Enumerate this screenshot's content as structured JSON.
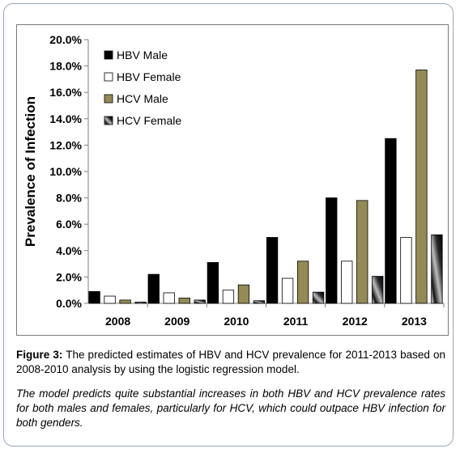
{
  "figure": {
    "caption_label": "Figure 3:",
    "caption_text": " The predicted estimates of HBV and HCV prevalence for 2011-2013 based on 2008-2010 analysis by using the logistic regression model.",
    "note": "The model predicts quite substantial increases in both HBV and HCV prevalence rates for both males and females, particularly for HCV, which could outpace HBV infection for both genders."
  },
  "chart_data": {
    "type": "bar",
    "categories": [
      "2008",
      "2009",
      "2010",
      "2011",
      "2012",
      "2013"
    ],
    "series": [
      {
        "name": "HBV Male",
        "values": [
          0.9,
          2.2,
          3.1,
          5.0,
          8.0,
          12.5
        ],
        "color": "#000000",
        "fill": "solid"
      },
      {
        "name": "HBV Female",
        "values": [
          0.55,
          0.8,
          1.0,
          1.9,
          3.2,
          5.0
        ],
        "color": "#ffffff",
        "fill": "solid"
      },
      {
        "name": "HCV Male",
        "values": [
          0.25,
          0.4,
          1.4,
          3.2,
          7.8,
          17.7
        ],
        "color": "#948b54",
        "fill": "solid"
      },
      {
        "name": "HCV Female",
        "values": [
          0.1,
          0.25,
          0.2,
          0.85,
          2.05,
          5.2
        ],
        "color": "#1a1a1a",
        "fill": "gradient"
      }
    ],
    "ylabel": "Prevalence of Infection",
    "xlabel": "",
    "title": "",
    "ylim": [
      0,
      20
    ],
    "yticks": [
      "0.0%",
      "2.0%",
      "4.0%",
      "6.0%",
      "8.0%",
      "10.0%",
      "12.0%",
      "14.0%",
      "16.0%",
      "18.0%",
      "20.0%"
    ],
    "grid": false,
    "legend_position": "top-left"
  }
}
